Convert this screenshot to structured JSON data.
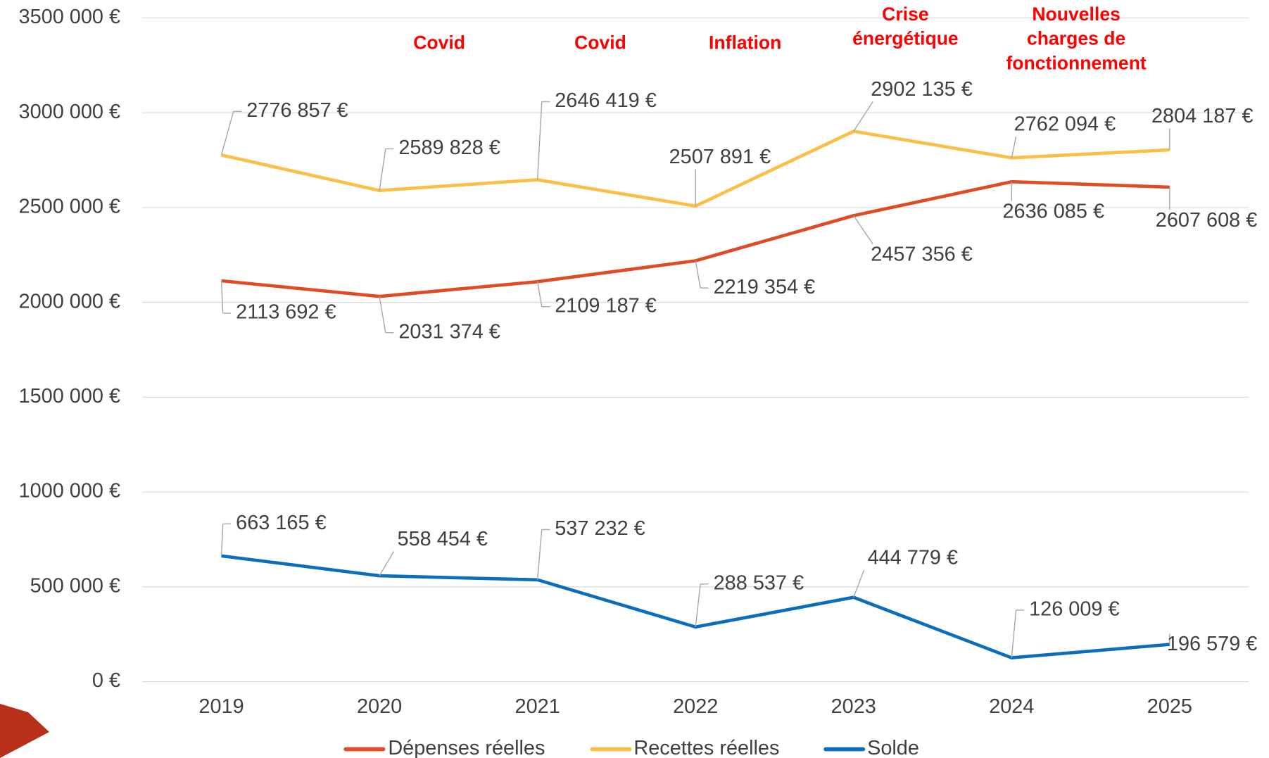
{
  "chart_data": {
    "type": "line",
    "categories": [
      "2019",
      "2020",
      "2021",
      "2022",
      "2023",
      "2024",
      "2025"
    ],
    "series": [
      {
        "name": "Dépenses réelles",
        "color": "#e04a25",
        "values": [
          2113692,
          2031374,
          2109187,
          2219354,
          2457356,
          2636085,
          2607608
        ],
        "value_labels": [
          "2113 692 €",
          "2031 374 €",
          "2109 187 €",
          "2219 354 €",
          "2457 356 €",
          "2636 085 €",
          "2607 608 €"
        ]
      },
      {
        "name": "Recettes réelles",
        "color": "#fbbf45",
        "values": [
          2776857,
          2589828,
          2646419,
          2507891,
          2902135,
          2762094,
          2804187
        ],
        "value_labels": [
          "2776 857 €",
          "2589 828 €",
          "2646 419 €",
          "2507 891 €",
          "2902 135 €",
          "2762 094 €",
          "2804 187 €"
        ]
      },
      {
        "name": "Solde",
        "color": "#0a6ebd",
        "values": [
          663165,
          558454,
          537232,
          288537,
          444779,
          126009,
          196579
        ],
        "value_labels": [
          "663 165 €",
          "558 454 €",
          "537 232 €",
          "288 537 €",
          "444 779 €",
          "126 009 €",
          "196 579 €"
        ]
      }
    ],
    "ylim": [
      0,
      3500000
    ],
    "yticks": [
      {
        "value": 0,
        "label": "0 €"
      },
      {
        "value": 500000,
        "label": "500 000 €"
      },
      {
        "value": 1000000,
        "label": "1000 000 €"
      },
      {
        "value": 1500000,
        "label": "1500 000 €"
      },
      {
        "value": 2000000,
        "label": "2000 000 €"
      },
      {
        "value": 2500000,
        "label": "2500 000 €"
      },
      {
        "value": 3000000,
        "label": "3000 000 €"
      },
      {
        "value": 3500000,
        "label": "3500 000 €"
      }
    ],
    "grid": true,
    "legend": "bottom",
    "annotations": [
      "Covid",
      "Covid",
      "Inflation",
      "Crise\nénergétique",
      "Nouvelles\ncharges de\nfonctionnement"
    ]
  }
}
